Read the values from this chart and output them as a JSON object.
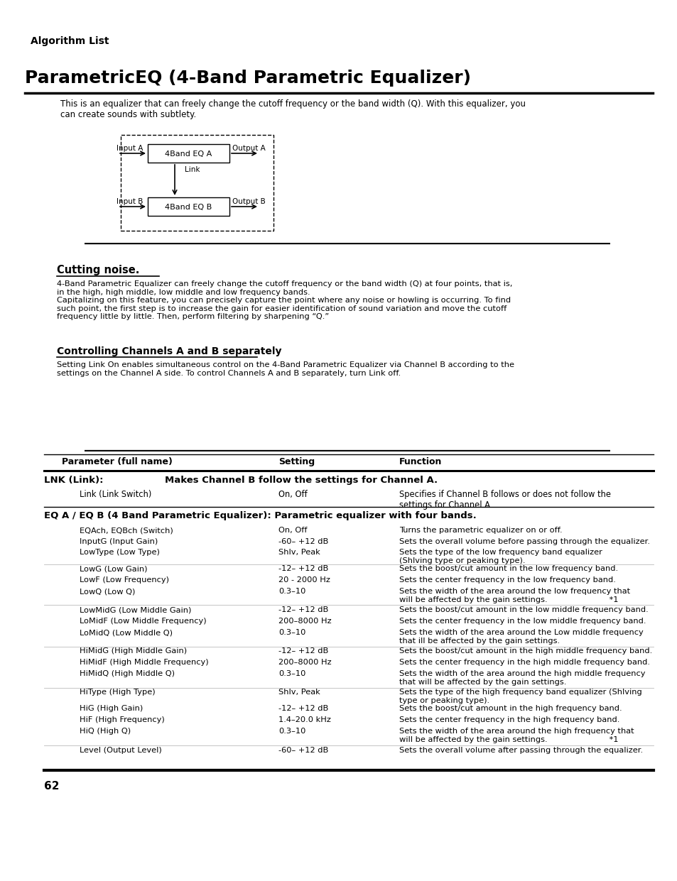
{
  "bg_color": "#ffffff",
  "page_num": "62",
  "algo_list_label": "Algorithm List",
  "title": "ParametricEQ (4-Band Parametric Equalizer)",
  "intro_text": "This is an equalizer that can freely change the cutoff frequency or the band width (Q). With this equalizer, you\ncan create sounds with subtlety.",
  "diagram": {
    "input_a": "Input A",
    "input_b": "Input B",
    "output_a": "Output A",
    "output_b": "Output B",
    "box_a": "4Band EQ A",
    "box_b": "4Band EQ B",
    "link_label": "Link"
  },
  "cutting_noise_title": "Cutting noise.",
  "cutting_noise_text": "4-Band Parametric Equalizer can freely change the cutoff frequency or the band width (Q) at four points, that is,\nin the high, high middle, low middle and low frequency bands.\nCapitalizing on this feature, you can precisely capture the point where any noise or howling is occurring. To find\nsuch point, the first step is to increase the gain for easier identification of sound variation and move the cutoff\nfrequency little by little. Then, perform filtering by sharpening “Q.”",
  "controlling_title": "Controlling Channels A and B separately",
  "controlling_text": "Setting Link On enables simultaneous control on the 4-Band Parametric Equalizer via Channel B according to the\nsettings on the Channel A side. To control Channels A and B separately, turn Link off.",
  "table_header": [
    "Parameter (full name)",
    "Setting",
    "Function"
  ],
  "lnk_section_title": "LNK (Link):",
  "lnk_section_desc": "Makes Channel B follow the settings for Channel A.",
  "lnk_row": [
    "Link (Link Switch)",
    "On, Off",
    "Specifies if Channel B follows or does not follow the\nsettings for Channel A."
  ],
  "eq_section_title": "EQ A / EQ B (4 Band Parametric Equalizer): Parametric equalizer with four bands.",
  "eq_rows": [
    [
      "EQAch, EQBch (Switch)",
      "On, Off",
      "Turns the parametric equalizer on or off."
    ],
    [
      "InputG (Input Gain)",
      "-60– +12 dB",
      "Sets the overall volume before passing through the equalizer."
    ],
    [
      "LowType (Low Type)",
      "Shlv, Peak",
      "Sets the type of the low frequency band equalizer\n(Shlving type or peaking type)."
    ],
    [
      "LowG (Low Gain)",
      "-12– +12 dB",
      "Sets the boost/cut amount in the low frequency band."
    ],
    [
      "LowF (Low Frequency)",
      "20 - 2000 Hz",
      "Sets the center frequency in the low frequency band."
    ],
    [
      "LowQ (Low Q)",
      "0.3–10",
      "Sets the width of the area around the low frequency that\nwill be affected by the gain settings.                        *1"
    ],
    [
      "LowMidG (Low Middle Gain)",
      "-12– +12 dB",
      "Sets the boost/cut amount in the low middle frequency band."
    ],
    [
      "LoMidF (Low Middle Frequency)",
      "200–8000 Hz",
      "Sets the center frequency in the low middle frequency band."
    ],
    [
      "LoMidQ (Low Middle Q)",
      "0.3–10",
      "Sets the width of the area around the Low middle frequency\nthat ill be affected by the gain settings."
    ],
    [
      "HiMidG (High Middle Gain)",
      "-12– +12 dB",
      "Sets the boost/cut amount in the high middle frequency band."
    ],
    [
      "HiMidF (High Middle Frequency)",
      "200–8000 Hz",
      "Sets the center frequency in the high middle frequency band."
    ],
    [
      "HiMidQ (High Middle Q)",
      "0.3–10",
      "Sets the width of the area around the high middle frequency\nthat will be affected by the gain settings."
    ],
    [
      "HiType (High Type)",
      "Shlv, Peak",
      "Sets the type of the high frequency band equalizer (Shlving\ntype or peaking type)."
    ],
    [
      "HiG (High Gain)",
      "-12– +12 dB",
      "Sets the boost/cut amount in the high frequency band."
    ],
    [
      "HiF (High Frequency)",
      "1.4–20.0 kHz",
      "Sets the center frequency in the high frequency band."
    ],
    [
      "HiQ (High Q)",
      "0.3–10",
      "Sets the width of the area around the high frequency that\nwill be affected by the gain settings.                        *1"
    ],
    [
      "Level (Output Level)",
      "-60– +12 dB",
      "Sets the overall volume after passing through the equalizer."
    ]
  ]
}
